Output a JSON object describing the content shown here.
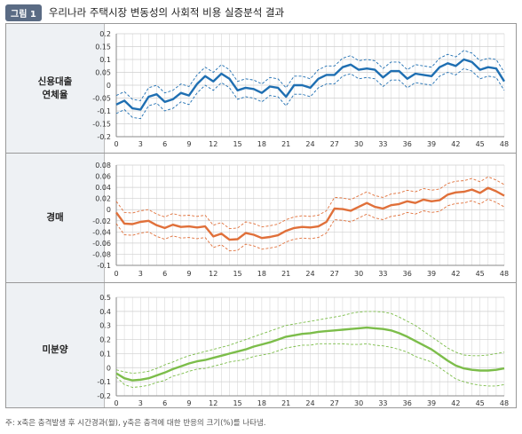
{
  "header": {
    "badge": "그림 1",
    "title": "우리나라 주택시장 변동성의 사회적 비용 실증분석 결과"
  },
  "footnote": "주: x축은 충격발생 후 시간경과(월), y축은 충격에 대한 반응의 크기(%)를 나타냄.",
  "chart_data": [
    {
      "type": "line",
      "row_label": [
        "신용대출",
        "연체율"
      ],
      "x": [
        0,
        1,
        2,
        3,
        4,
        5,
        6,
        7,
        8,
        9,
        10,
        11,
        12,
        13,
        14,
        15,
        16,
        17,
        18,
        19,
        20,
        21,
        22,
        23,
        24,
        25,
        26,
        27,
        28,
        29,
        30,
        31,
        32,
        33,
        34,
        35,
        36,
        37,
        38,
        39,
        40,
        41,
        42,
        43,
        44,
        45,
        46,
        47,
        48
      ],
      "x_ticks": [
        0,
        3,
        6,
        9,
        12,
        15,
        18,
        21,
        24,
        27,
        30,
        33,
        36,
        39,
        42,
        45,
        48
      ],
      "ylim": [
        -0.2,
        0.2
      ],
      "y_ticks": [
        "0.2",
        "0.15",
        "0.1",
        "0.05",
        "0",
        "-0.05",
        "-0.1",
        "-0.15",
        "-0.2"
      ],
      "y_tick_values": [
        0.2,
        0.15,
        0.1,
        0.05,
        0,
        -0.05,
        -0.1,
        -0.15,
        -0.2
      ],
      "color": "#1f6fb2",
      "series": [
        {
          "role": "estimate",
          "values": [
            -0.075,
            -0.06,
            -0.09,
            -0.095,
            -0.045,
            -0.035,
            -0.065,
            -0.055,
            -0.03,
            -0.04,
            0.005,
            0.035,
            0.015,
            0.045,
            0.025,
            -0.02,
            -0.01,
            -0.015,
            -0.03,
            -0.005,
            -0.01,
            -0.045,
            0,
            0,
            -0.01,
            0.025,
            0.04,
            0.04,
            0.07,
            0.08,
            0.06,
            0.065,
            0.06,
            0.03,
            0.055,
            0.055,
            0.025,
            0.045,
            0.04,
            0.035,
            0.07,
            0.085,
            0.075,
            0.1,
            0.09,
            0.06,
            0.07,
            0.065,
            0.015
          ]
        },
        {
          "role": "upper",
          "values": [
            -0.04,
            -0.025,
            -0.055,
            -0.06,
            -0.01,
            0,
            -0.03,
            -0.02,
            0.005,
            -0.005,
            0.04,
            0.07,
            0.05,
            0.08,
            0.06,
            0.015,
            0.025,
            0.02,
            0.005,
            0.03,
            0.025,
            -0.01,
            0.035,
            0.035,
            0.025,
            0.06,
            0.075,
            0.075,
            0.105,
            0.115,
            0.095,
            0.1,
            0.095,
            0.065,
            0.09,
            0.09,
            0.06,
            0.08,
            0.075,
            0.07,
            0.105,
            0.12,
            0.11,
            0.135,
            0.125,
            0.095,
            0.105,
            0.1,
            0.05
          ]
        },
        {
          "role": "lower",
          "values": [
            -0.11,
            -0.095,
            -0.125,
            -0.13,
            -0.08,
            -0.07,
            -0.1,
            -0.09,
            -0.065,
            -0.075,
            -0.03,
            0,
            -0.02,
            0.01,
            -0.01,
            -0.055,
            -0.045,
            -0.05,
            -0.065,
            -0.04,
            -0.045,
            -0.08,
            -0.035,
            -0.035,
            -0.045,
            -0.01,
            0.005,
            0.005,
            0.035,
            0.045,
            0.025,
            0.03,
            0.025,
            -0.005,
            0.02,
            0.02,
            -0.01,
            0.01,
            0.005,
            0,
            0.035,
            0.05,
            0.04,
            0.065,
            0.055,
            0.025,
            0.035,
            0.03,
            -0.02
          ]
        }
      ]
    },
    {
      "type": "line",
      "row_label": [
        "경매"
      ],
      "x": [
        0,
        1,
        2,
        3,
        4,
        5,
        6,
        7,
        8,
        9,
        10,
        11,
        12,
        13,
        14,
        15,
        16,
        17,
        18,
        19,
        20,
        21,
        22,
        23,
        24,
        25,
        26,
        27,
        28,
        29,
        30,
        31,
        32,
        33,
        34,
        35,
        36,
        37,
        38,
        39,
        40,
        41,
        42,
        43,
        44,
        45,
        46,
        47,
        48
      ],
      "x_ticks": [
        0,
        3,
        6,
        9,
        12,
        15,
        18,
        21,
        24,
        27,
        30,
        33,
        36,
        39,
        42,
        45,
        48
      ],
      "ylim": [
        -0.1,
        0.08
      ],
      "y_ticks": [
        "0.08",
        "0.06",
        "0.04",
        "0.02",
        "0",
        "-0.02",
        "-0.04",
        "-0.06",
        "-0.08",
        "-0.1"
      ],
      "y_tick_values": [
        0.08,
        0.06,
        0.04,
        0.02,
        0,
        -0.02,
        -0.04,
        -0.06,
        -0.08,
        -0.1
      ],
      "color": "#e0703a",
      "series": [
        {
          "role": "estimate",
          "values": [
            -0.005,
            -0.025,
            -0.026,
            -0.022,
            -0.02,
            -0.028,
            -0.033,
            -0.027,
            -0.031,
            -0.03,
            -0.032,
            -0.03,
            -0.048,
            -0.043,
            -0.054,
            -0.053,
            -0.042,
            -0.045,
            -0.051,
            -0.049,
            -0.046,
            -0.038,
            -0.033,
            -0.031,
            -0.032,
            -0.03,
            -0.022,
            0.002,
            0.001,
            -0.002,
            0.005,
            0.012,
            0.005,
            0.002,
            0.008,
            0.01,
            0.015,
            0.012,
            0.018,
            0.015,
            0.017,
            0.027,
            0.031,
            0.032,
            0.036,
            0.03,
            0.039,
            0.033,
            0.025
          ]
        },
        {
          "role": "upper",
          "values": [
            0.015,
            -0.005,
            -0.006,
            -0.002,
            0,
            -0.008,
            -0.013,
            -0.007,
            -0.011,
            -0.01,
            -0.012,
            -0.01,
            -0.028,
            -0.023,
            -0.034,
            -0.033,
            -0.022,
            -0.025,
            -0.031,
            -0.029,
            -0.026,
            -0.018,
            -0.013,
            -0.011,
            -0.012,
            -0.01,
            -0.002,
            0.022,
            0.021,
            0.018,
            0.025,
            0.032,
            0.025,
            0.022,
            0.028,
            0.03,
            0.035,
            0.032,
            0.038,
            0.035,
            0.037,
            0.047,
            0.051,
            0.052,
            0.056,
            0.05,
            0.059,
            0.053,
            0.045
          ]
        },
        {
          "role": "lower",
          "values": [
            -0.025,
            -0.045,
            -0.046,
            -0.042,
            -0.04,
            -0.048,
            -0.053,
            -0.047,
            -0.051,
            -0.05,
            -0.052,
            -0.05,
            -0.068,
            -0.063,
            -0.074,
            -0.073,
            -0.062,
            -0.065,
            -0.071,
            -0.069,
            -0.066,
            -0.058,
            -0.053,
            -0.051,
            -0.052,
            -0.05,
            -0.042,
            -0.018,
            -0.019,
            -0.022,
            -0.015,
            -0.008,
            -0.015,
            -0.018,
            -0.012,
            -0.01,
            -0.005,
            -0.008,
            -0.002,
            -0.005,
            -0.003,
            0.007,
            0.011,
            0.012,
            0.016,
            0.01,
            0.019,
            0.013,
            0.005
          ]
        }
      ]
    },
    {
      "type": "line",
      "row_label": [
        "미분양"
      ],
      "x": [
        0,
        1,
        2,
        3,
        4,
        5,
        6,
        7,
        8,
        9,
        10,
        11,
        12,
        13,
        14,
        15,
        16,
        17,
        18,
        19,
        20,
        21,
        22,
        23,
        24,
        25,
        26,
        27,
        28,
        29,
        30,
        31,
        32,
        33,
        34,
        35,
        36,
        37,
        38,
        39,
        40,
        41,
        42,
        43,
        44,
        45,
        46,
        47,
        48
      ],
      "x_ticks": [
        0,
        3,
        6,
        9,
        12,
        15,
        18,
        21,
        24,
        27,
        30,
        33,
        36,
        39,
        42,
        45,
        48
      ],
      "ylim": [
        -0.2,
        0.5
      ],
      "y_ticks": [
        "0.5",
        "0.4",
        "0.3",
        "0.2",
        "0.1",
        "0",
        "-0.1",
        "-0.2"
      ],
      "y_tick_values": [
        0.5,
        0.4,
        0.3,
        0.2,
        0.1,
        0,
        -0.1,
        -0.2
      ],
      "color": "#7cbd4a",
      "series": [
        {
          "role": "estimate",
          "values": [
            -0.04,
            -0.075,
            -0.09,
            -0.085,
            -0.075,
            -0.055,
            -0.035,
            -0.01,
            0.01,
            0.03,
            0.045,
            0.055,
            0.07,
            0.085,
            0.1,
            0.115,
            0.13,
            0.15,
            0.165,
            0.18,
            0.2,
            0.22,
            0.23,
            0.24,
            0.245,
            0.255,
            0.26,
            0.265,
            0.27,
            0.275,
            0.28,
            0.285,
            0.28,
            0.275,
            0.265,
            0.245,
            0.22,
            0.19,
            0.16,
            0.13,
            0.09,
            0.05,
            0.015,
            -0.005,
            -0.015,
            -0.02,
            -0.02,
            -0.015,
            -0.005
          ]
        },
        {
          "role": "upper",
          "values": [
            -0.015,
            -0.03,
            -0.04,
            -0.035,
            -0.025,
            -0.005,
            0.02,
            0.04,
            0.065,
            0.085,
            0.1,
            0.115,
            0.13,
            0.145,
            0.16,
            0.18,
            0.2,
            0.22,
            0.24,
            0.26,
            0.28,
            0.3,
            0.31,
            0.32,
            0.33,
            0.34,
            0.35,
            0.36,
            0.37,
            0.385,
            0.395,
            0.4,
            0.4,
            0.395,
            0.385,
            0.36,
            0.33,
            0.3,
            0.26,
            0.22,
            0.18,
            0.14,
            0.11,
            0.09,
            0.085,
            0.085,
            0.09,
            0.1,
            0.11
          ]
        },
        {
          "role": "lower",
          "values": [
            -0.065,
            -0.12,
            -0.14,
            -0.135,
            -0.125,
            -0.105,
            -0.09,
            -0.06,
            -0.045,
            -0.025,
            -0.01,
            -0.005,
            0.01,
            0.025,
            0.04,
            0.05,
            0.06,
            0.08,
            0.09,
            0.1,
            0.12,
            0.14,
            0.15,
            0.16,
            0.16,
            0.17,
            0.17,
            0.17,
            0.17,
            0.165,
            0.165,
            0.17,
            0.16,
            0.155,
            0.145,
            0.13,
            0.11,
            0.08,
            0.06,
            0.04,
            0,
            -0.04,
            -0.08,
            -0.1,
            -0.115,
            -0.125,
            -0.13,
            -0.13,
            -0.12
          ]
        }
      ]
    }
  ]
}
